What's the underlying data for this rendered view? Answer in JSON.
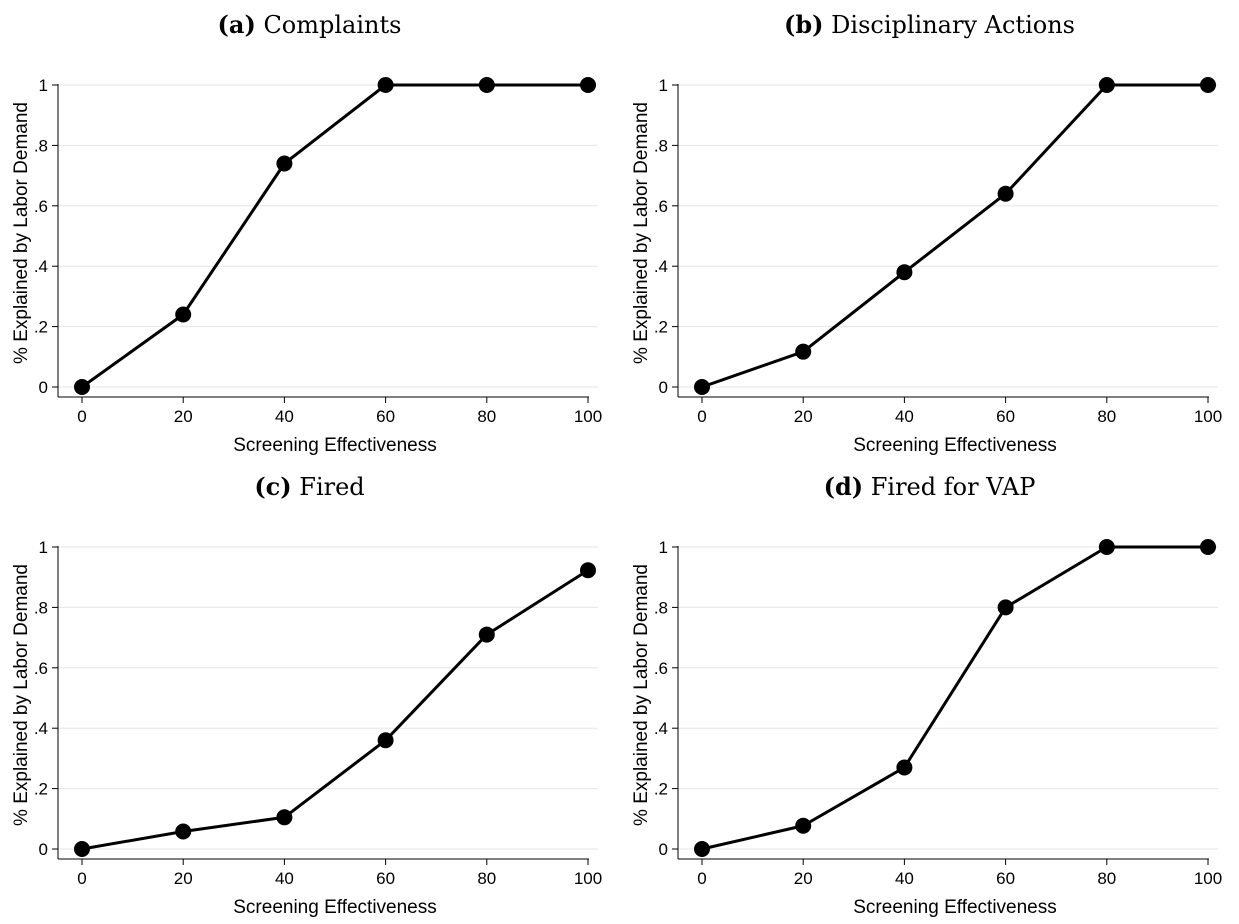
{
  "chart_data": [
    {
      "type": "line",
      "panel_tag": "(a)",
      "title": "Complaints",
      "xlabel": "Screening Effectiveness",
      "ylabel": "% Explained by Labor Demand",
      "x": [
        0,
        20,
        40,
        60,
        80,
        100
      ],
      "series": [
        {
          "values": [
            0,
            0.24,
            0.74,
            1,
            1,
            1
          ]
        }
      ],
      "xlim": [
        0,
        100
      ],
      "ylim": [
        0,
        1
      ],
      "xticks": [
        0,
        20,
        40,
        60,
        80,
        100
      ],
      "xtick_labels": [
        "0",
        "20",
        "40",
        "60",
        "80",
        "100"
      ],
      "yticks": [
        0,
        0.2,
        0.4,
        0.6,
        0.8,
        1
      ],
      "ytick_labels": [
        "0",
        ".2",
        ".4",
        ".6",
        ".8",
        "1"
      ],
      "grid": "horizontal"
    },
    {
      "type": "line",
      "panel_tag": "(b)",
      "title": "Disciplinary Actions",
      "xlabel": "Screening Effectiveness",
      "ylabel": "% Explained by Labor Demand",
      "x": [
        0,
        20,
        40,
        60,
        80,
        100
      ],
      "series": [
        {
          "values": [
            0,
            0.117,
            0.38,
            0.64,
            1,
            1
          ]
        }
      ],
      "xlim": [
        0,
        100
      ],
      "ylim": [
        0,
        1
      ],
      "xticks": [
        0,
        20,
        40,
        60,
        80,
        100
      ],
      "xtick_labels": [
        "0",
        "20",
        "40",
        "60",
        "80",
        "100"
      ],
      "yticks": [
        0,
        0.2,
        0.4,
        0.6,
        0.8,
        1
      ],
      "ytick_labels": [
        "0",
        ".2",
        ".4",
        ".6",
        ".8",
        "1"
      ],
      "grid": "horizontal"
    },
    {
      "type": "line",
      "panel_tag": "(c)",
      "title": "Fired",
      "xlabel": "Screening Effectiveness",
      "ylabel": "% Explained by Labor Demand",
      "x": [
        0,
        20,
        40,
        60,
        80,
        100
      ],
      "series": [
        {
          "values": [
            0,
            0.058,
            0.105,
            0.36,
            0.71,
            0.923
          ]
        }
      ],
      "xlim": [
        0,
        100
      ],
      "ylim": [
        0,
        1
      ],
      "xticks": [
        0,
        20,
        40,
        60,
        80,
        100
      ],
      "xtick_labels": [
        "0",
        "20",
        "40",
        "60",
        "80",
        "100"
      ],
      "yticks": [
        0,
        0.2,
        0.4,
        0.6,
        0.8,
        1
      ],
      "ytick_labels": [
        "0",
        ".2",
        ".4",
        ".6",
        ".8",
        "1"
      ],
      "grid": "horizontal"
    },
    {
      "type": "line",
      "panel_tag": "(d)",
      "title": "Fired for VAP",
      "xlabel": "Screening Effectiveness",
      "ylabel": "% Explained by Labor Demand",
      "x": [
        0,
        20,
        40,
        60,
        80,
        100
      ],
      "series": [
        {
          "values": [
            0,
            0.077,
            0.27,
            0.8,
            1,
            1
          ]
        }
      ],
      "xlim": [
        0,
        100
      ],
      "ylim": [
        0,
        1
      ],
      "xticks": [
        0,
        20,
        40,
        60,
        80,
        100
      ],
      "xtick_labels": [
        "0",
        "20",
        "40",
        "60",
        "80",
        "100"
      ],
      "yticks": [
        0,
        0.2,
        0.4,
        0.6,
        0.8,
        1
      ],
      "ytick_labels": [
        "0",
        ".2",
        ".4",
        ".6",
        ".8",
        "1"
      ],
      "grid": "horizontal"
    }
  ]
}
